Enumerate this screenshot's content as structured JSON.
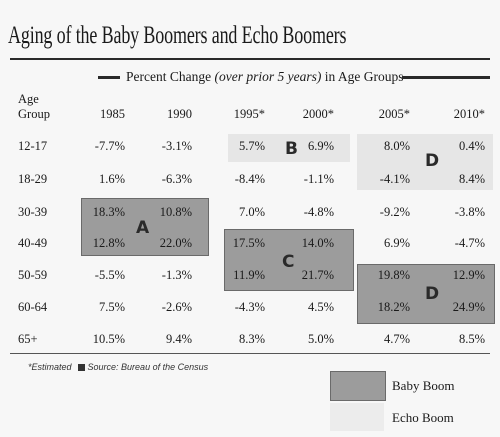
{
  "title": "Aging of the Baby Boomers and Echo Boomers",
  "subtitle": {
    "main": "Percent Change ",
    "italic": "(over prior 5 years)",
    "tail": " in Age Groups"
  },
  "header": {
    "age1": "Age",
    "age2": "Group",
    "years": [
      "1985",
      "1990",
      "1995*",
      "2000*",
      "2005*",
      "2010*"
    ]
  },
  "rows": [
    {
      "label": "12-17",
      "values": [
        "-7.7%",
        "-3.1%",
        "5.7%",
        "6.9%",
        "8.0%",
        "0.4%"
      ]
    },
    {
      "label": "18-29",
      "values": [
        "1.6%",
        "-6.3%",
        "-8.4%",
        "-1.1%",
        "-4.1%",
        "8.4%"
      ]
    },
    {
      "label": "30-39",
      "values": [
        "18.3%",
        "10.8%",
        "7.0%",
        "-4.8%",
        "-9.2%",
        "-3.8%"
      ]
    },
    {
      "label": "40-49",
      "values": [
        "12.8%",
        "22.0%",
        "17.5%",
        "14.0%",
        "6.9%",
        "-4.7%"
      ]
    },
    {
      "label": "50-59",
      "values": [
        "-5.5%",
        "-1.3%",
        "11.9%",
        "21.7%",
        "19.8%",
        "12.9%"
      ]
    },
    {
      "label": "60-64",
      "values": [
        "7.5%",
        "-2.6%",
        "-4.3%",
        "4.5%",
        "18.2%",
        "24.9%"
      ]
    },
    {
      "label": "65+",
      "values": [
        "10.5%",
        "9.4%",
        "8.3%",
        "5.0%",
        "4.7%",
        "8.5%"
      ]
    }
  ],
  "box_labels": {
    "a": "A",
    "b": "B",
    "c": "C",
    "d_echo": "D",
    "d_boom": "D"
  },
  "footnote": {
    "estimated": "*Estimated",
    "source": "Source: Bureau of the Census"
  },
  "legend": {
    "baby_boom": "Baby Boom",
    "echo_boom": "Echo Boom"
  },
  "colors": {
    "baby_boom": "#9c9c9c",
    "echo_boom": "#e6e6e6"
  }
}
